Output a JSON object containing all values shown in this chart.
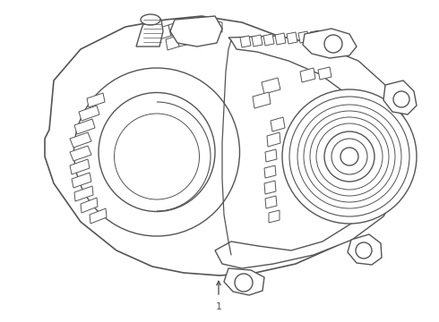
{
  "background_color": "#ffffff",
  "line_color": "#555555",
  "line_width": 1.0,
  "label_text": "1",
  "label_fontsize": 8,
  "figsize": [
    4.9,
    3.6
  ],
  "dpi": 100
}
